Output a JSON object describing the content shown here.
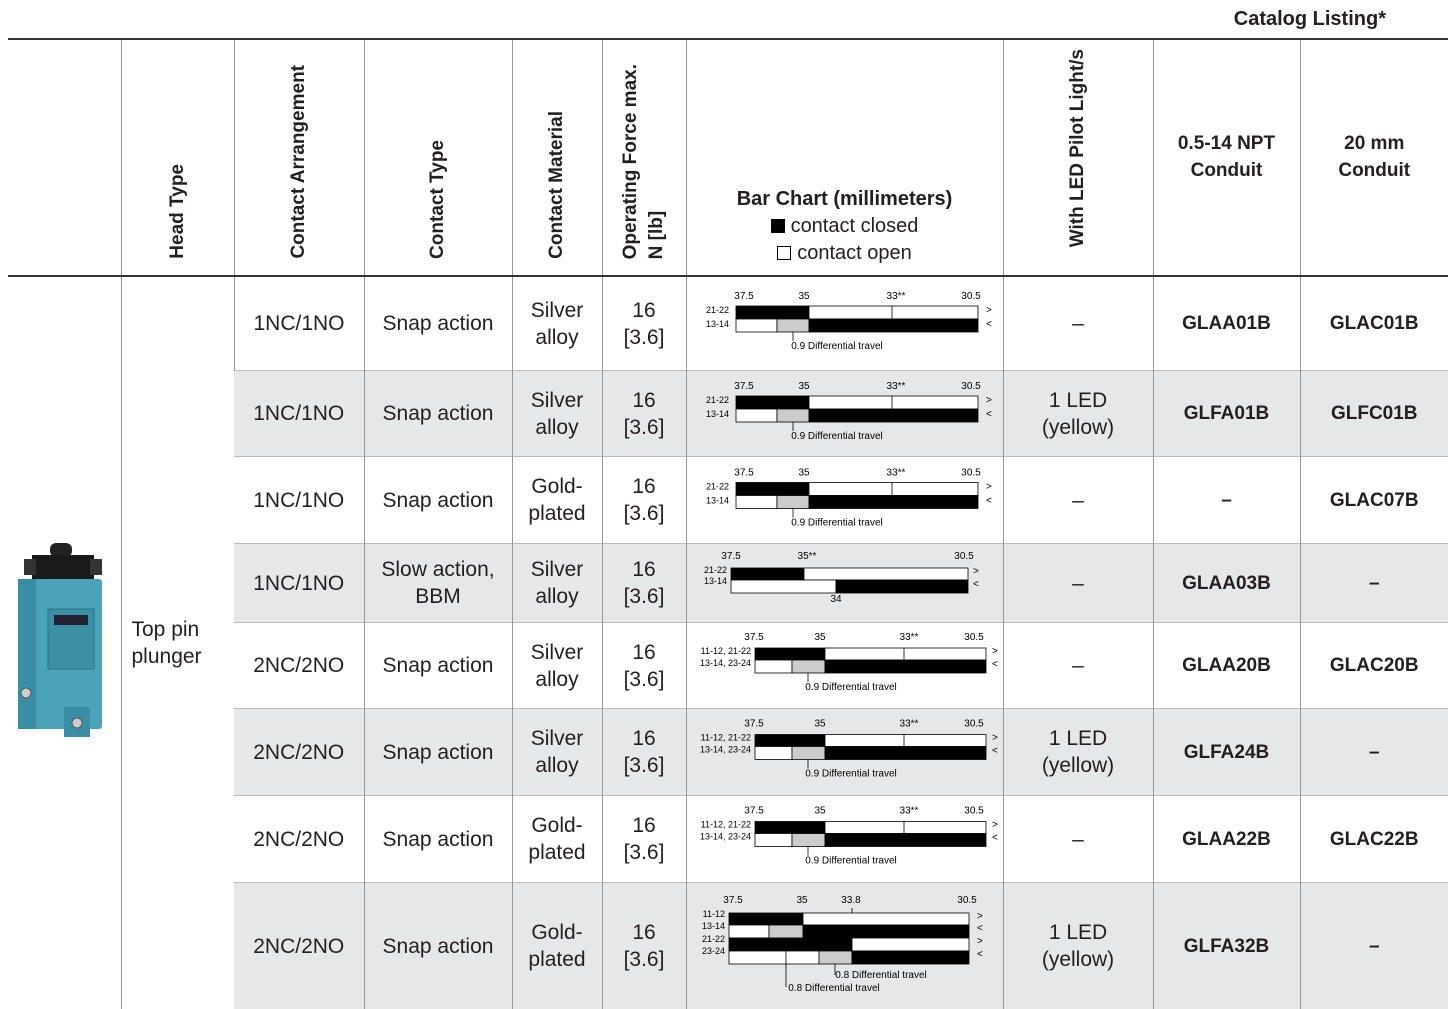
{
  "header": {
    "catalog_listing": "Catalog Listing*"
  },
  "table": {
    "columns": {
      "head_type": "Head Type",
      "contact_arrangement": "Contact Arrangement",
      "contact_type": "Contact Type",
      "contact_material": "Contact Material",
      "operating_force": [
        "Operating Force max.",
        "N [lb]"
      ],
      "bar_chart": {
        "title": "Bar Chart (millimeters)",
        "closed": "contact closed",
        "open": "contact open"
      },
      "led": "With LED Pilot Light/s",
      "npt": [
        "0.5-14 NPT",
        "Conduit"
      ],
      "mm20": [
        "20 mm",
        "Conduit"
      ]
    },
    "head_type": "Top pin plunger",
    "rows": [
      {
        "arrangement": "1NC/1NO",
        "contact_type": "Snap action",
        "material": "Silver alloy",
        "force": "16",
        "force_lb": "[3.6]",
        "bar_chart": {
          "scale": [
            "37.5",
            "35",
            "33**",
            "30.5"
          ],
          "circuits": [
            "21-22",
            "13-14"
          ],
          "arrows": [
            ">",
            "<"
          ],
          "notes": [
            "0.9 Differential travel"
          ]
        },
        "led": "–",
        "npt": "GLAA01B",
        "mm20": "GLAC01B"
      },
      {
        "arrangement": "1NC/1NO",
        "contact_type": "Snap action",
        "material": "Silver alloy",
        "force": "16",
        "force_lb": "[3.6]",
        "bar_chart": {
          "scale": [
            "37.5",
            "35",
            "33**",
            "30.5"
          ],
          "circuits": [
            "21-22",
            "13-14"
          ],
          "arrows": [
            ">",
            "<"
          ],
          "notes": [
            "0.9 Differential travel"
          ]
        },
        "led": "1 LED (yellow)",
        "npt": "GLFA01B",
        "mm20": "GLFC01B"
      },
      {
        "arrangement": "1NC/1NO",
        "contact_type": "Snap action",
        "material": "Gold-plated",
        "force": "16",
        "force_lb": "[3.6]",
        "bar_chart": {
          "scale": [
            "37.5",
            "35",
            "33**",
            "30.5"
          ],
          "circuits": [
            "21-22",
            "13-14"
          ],
          "arrows": [
            ">",
            "<"
          ],
          "notes": [
            "0.9 Differential travel"
          ]
        },
        "led": "–",
        "npt": "–",
        "mm20": "GLAC07B"
      },
      {
        "arrangement": "1NC/1NO",
        "contact_type": "Slow action, BBM",
        "material": "Silver alloy",
        "force": "16",
        "force_lb": "[3.6]",
        "bar_chart": {
          "scale": [
            "37.5",
            "35**",
            "30.5"
          ],
          "circuits": [
            "21-22",
            "13-14"
          ],
          "arrows": [
            ">",
            "<"
          ],
          "notes": [
            "34"
          ]
        },
        "led": "–",
        "npt": "GLAA03B",
        "mm20": "–"
      },
      {
        "arrangement": "2NC/2NO",
        "contact_type": "Snap action",
        "material": "Silver alloy",
        "force": "16",
        "force_lb": "[3.6]",
        "bar_chart": {
          "scale": [
            "37.5",
            "35",
            "33**",
            "30.5"
          ],
          "circuits": [
            "11-12, 21-22",
            "13-14, 23-24"
          ],
          "arrows": [
            ">",
            "<"
          ],
          "notes": [
            "0.9 Differential travel"
          ]
        },
        "led": "–",
        "npt": "GLAA20B",
        "mm20": "GLAC20B"
      },
      {
        "arrangement": "2NC/2NO",
        "contact_type": "Snap action",
        "material": "Silver alloy",
        "force": "16",
        "force_lb": "[3.6]",
        "bar_chart": {
          "scale": [
            "37.5",
            "35",
            "33**",
            "30.5"
          ],
          "circuits": [
            "11-12, 21-22",
            "13-14, 23-24"
          ],
          "arrows": [
            ">",
            "<"
          ],
          "notes": [
            "0.9 Differential travel"
          ]
        },
        "led": "1 LED (yellow)",
        "npt": "GLFA24B",
        "mm20": "–"
      },
      {
        "arrangement": "2NC/2NO",
        "contact_type": "Snap action",
        "material": "Gold-plated",
        "force": "16",
        "force_lb": "[3.6]",
        "bar_chart": {
          "scale": [
            "37.5",
            "35",
            "33**",
            "30.5"
          ],
          "circuits": [
            "11-12, 21-22",
            "13-14, 23-24"
          ],
          "arrows": [
            ">",
            "<"
          ],
          "notes": [
            "0.9 Differential travel"
          ]
        },
        "led": "–",
        "npt": "GLAA22B",
        "mm20": "GLAC22B"
      },
      {
        "arrangement": "2NC/2NO",
        "contact_type": "Snap action",
        "material": "Gold-plated",
        "force": "16",
        "force_lb": "[3.6]",
        "bar_chart": {
          "scale": [
            "37.5",
            "35",
            "33.8",
            "30.5"
          ],
          "circuits": [
            "11-12",
            "13-14",
            "21-22",
            "23-24"
          ],
          "arrows": [
            ">",
            "<",
            ">",
            "<"
          ],
          "notes": [
            "0.8 Differential travel",
            "0.8 Differential travel"
          ]
        },
        "led": "1 LED (yellow)",
        "npt": "GLFA32B",
        "mm20": "–"
      }
    ]
  }
}
